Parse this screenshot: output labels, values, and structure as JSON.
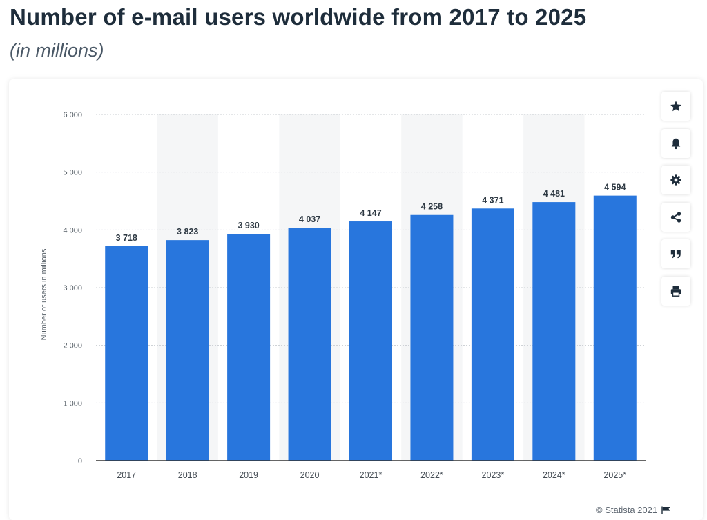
{
  "header": {
    "title": "Number of e-mail users worldwide from 2017 to 2025",
    "subtitle": "(in millions)"
  },
  "toolbar": {
    "buttons": [
      {
        "name": "favorite-button",
        "icon": "star-icon"
      },
      {
        "name": "notification-button",
        "icon": "bell-icon"
      },
      {
        "name": "settings-button",
        "icon": "gear-icon"
      },
      {
        "name": "share-button",
        "icon": "share-icon"
      },
      {
        "name": "cite-button",
        "icon": "quote-icon"
      },
      {
        "name": "print-button",
        "icon": "printer-icon"
      }
    ]
  },
  "credit": {
    "text": "© Statista 2021",
    "icon": "flag-icon"
  },
  "colors": {
    "bar": "#2876dd",
    "grid": "#c8ccd1",
    "axis": "#333333",
    "title": "#1e2d3b",
    "band": "#f5f6f7"
  },
  "chart_data": {
    "type": "bar",
    "categories": [
      "2017",
      "2018",
      "2019",
      "2020",
      "2021*",
      "2022*",
      "2023*",
      "2024*",
      "2025*"
    ],
    "values": [
      3718,
      3823,
      3930,
      4037,
      4147,
      4258,
      4371,
      4481,
      4594
    ],
    "value_labels": [
      "3 718",
      "3 823",
      "3 930",
      "4 037",
      "4 147",
      "4 258",
      "4 371",
      "4 481",
      "4 594"
    ],
    "ylabel": "Number of users in millions",
    "ylim": [
      0,
      6000
    ],
    "yticks": [
      0,
      1000,
      2000,
      3000,
      4000,
      5000,
      6000
    ],
    "ytick_labels": [
      "0",
      "1 000",
      "2 000",
      "3 000",
      "4 000",
      "5 000",
      "6 000"
    ],
    "grid": true,
    "legend": "none"
  }
}
